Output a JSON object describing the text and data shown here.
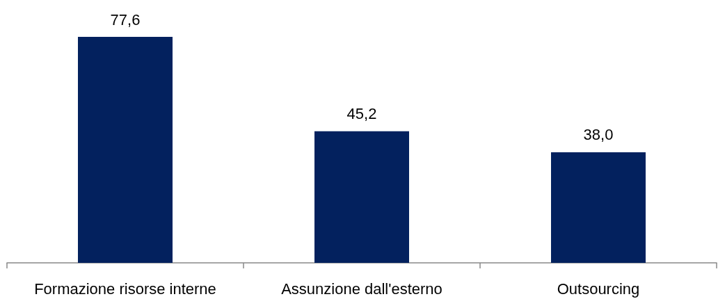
{
  "chart_data": {
    "type": "bar",
    "categories": [
      "Formazione risorse interne",
      "Assunzione dall'esterno",
      "Outsourcing"
    ],
    "values": [
      77.6,
      45.2,
      38.0
    ],
    "value_labels": [
      "77,6",
      "45,2",
      "38,0"
    ],
    "color": "#03215e",
    "grid": false
  }
}
